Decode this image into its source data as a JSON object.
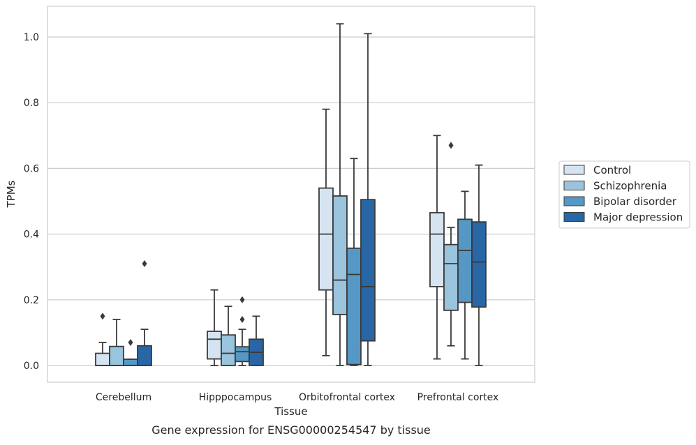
{
  "chart_data": {
    "type": "box",
    "caption": "Gene expression for ENSG00000254547 by tissue",
    "xlabel": "Tissue",
    "ylabel": "TPMs",
    "ylim": [
      -0.05,
      1.09
    ],
    "yticks": [
      "0.0",
      "0.2",
      "0.4",
      "0.6",
      "0.8",
      "1.0"
    ],
    "ytick_values": [
      0.0,
      0.2,
      0.4,
      0.6,
      0.8,
      1.0
    ],
    "grid": "horizontal",
    "legend_position": "right",
    "categories": [
      "Cerebellum",
      "Hipppocampus",
      "Orbitofrontal cortex",
      "Prefrontal cortex"
    ],
    "series": [
      {
        "name": "Control",
        "color": "#d6e4f2",
        "boxes": [
          {
            "whislo": 0.0,
            "q1": 0.0,
            "med": 0.0,
            "q3": 0.037,
            "whishi": 0.07,
            "fliers": [
              0.15
            ]
          },
          {
            "whislo": 0.0,
            "q1": 0.02,
            "med": 0.08,
            "q3": 0.104,
            "whishi": 0.23,
            "fliers": []
          },
          {
            "whislo": 0.03,
            "q1": 0.23,
            "med": 0.4,
            "q3": 0.54,
            "whishi": 0.78,
            "fliers": []
          },
          {
            "whislo": 0.02,
            "q1": 0.24,
            "med": 0.4,
            "q3": 0.465,
            "whishi": 0.7,
            "fliers": []
          }
        ]
      },
      {
        "name": "Schizophrenia",
        "color": "#9ac3dd",
        "boxes": [
          {
            "whislo": 0.0,
            "q1": 0.0,
            "med": 0.0,
            "q3": 0.058,
            "whishi": 0.14,
            "fliers": []
          },
          {
            "whislo": 0.0,
            "q1": 0.0,
            "med": 0.037,
            "q3": 0.093,
            "whishi": 0.18,
            "fliers": []
          },
          {
            "whislo": 0.0,
            "q1": 0.155,
            "med": 0.26,
            "q3": 0.516,
            "whishi": 1.04,
            "fliers": []
          },
          {
            "whislo": 0.06,
            "q1": 0.168,
            "med": 0.31,
            "q3": 0.368,
            "whishi": 0.42,
            "fliers": [
              0.67
            ]
          }
        ]
      },
      {
        "name": "Bipolar disorder",
        "color": "#5598c6",
        "boxes": [
          {
            "whislo": 0.0,
            "q1": 0.0,
            "med": 0.0,
            "q3": 0.019,
            "whishi": 0.019,
            "fliers": [
              0.07
            ]
          },
          {
            "whislo": 0.0,
            "q1": 0.012,
            "med": 0.042,
            "q3": 0.057,
            "whishi": 0.11,
            "fliers": [
              0.14,
              0.2
            ]
          },
          {
            "whislo": 0.0,
            "q1": 0.003,
            "med": 0.277,
            "q3": 0.357,
            "whishi": 0.63,
            "fliers": []
          },
          {
            "whislo": 0.02,
            "q1": 0.192,
            "med": 0.35,
            "q3": 0.445,
            "whishi": 0.53,
            "fliers": []
          }
        ]
      },
      {
        "name": "Major depression",
        "color": "#2866a6",
        "boxes": [
          {
            "whislo": 0.0,
            "q1": 0.0,
            "med": 0.0,
            "q3": 0.06,
            "whishi": 0.11,
            "fliers": [
              0.31
            ]
          },
          {
            "whislo": 0.0,
            "q1": 0.0,
            "med": 0.04,
            "q3": 0.08,
            "whishi": 0.15,
            "fliers": []
          },
          {
            "whislo": 0.0,
            "q1": 0.075,
            "med": 0.24,
            "q3": 0.505,
            "whishi": 1.01,
            "fliers": []
          },
          {
            "whislo": 0.0,
            "q1": 0.178,
            "med": 0.315,
            "q3": 0.437,
            "whishi": 0.61,
            "fliers": []
          }
        ]
      }
    ]
  }
}
